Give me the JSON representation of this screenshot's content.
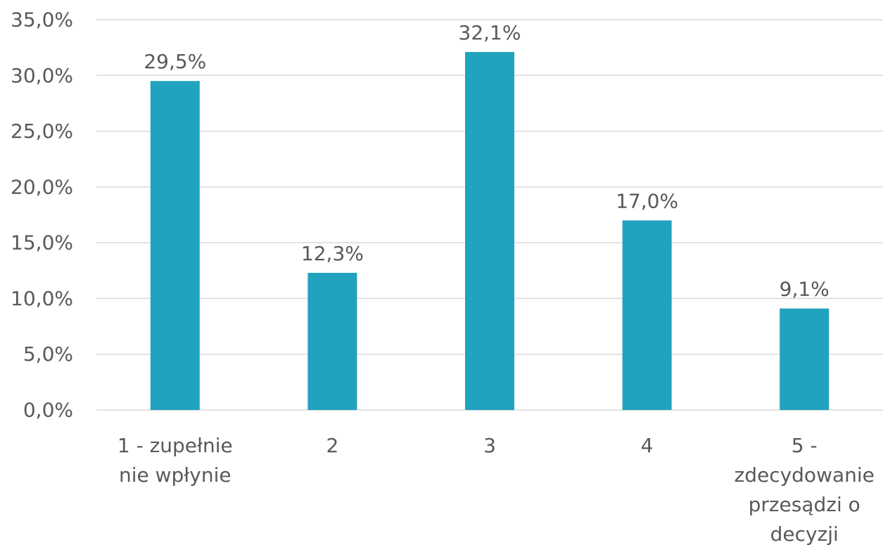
{
  "chart_data": {
    "type": "bar",
    "categories": [
      [
        "1 - zupełnie",
        "nie wpłynie"
      ],
      [
        "2"
      ],
      [
        "3"
      ],
      [
        "4"
      ],
      [
        "5 -",
        "zdecydowanie",
        "przesądzi o",
        "decyzji"
      ]
    ],
    "values": [
      29.5,
      12.3,
      32.1,
      17.0,
      9.1
    ],
    "value_labels": [
      "29,5%",
      "12,3%",
      "32,1%",
      "17,0%",
      "9,1%"
    ],
    "y_ticks": [
      0,
      5,
      10,
      15,
      20,
      25,
      30,
      35
    ],
    "y_tick_labels": [
      "0,0%",
      "5,0%",
      "10,0%",
      "15,0%",
      "20,0%",
      "25,0%",
      "30,0%",
      "35,0%"
    ],
    "ylim": [
      0,
      35
    ],
    "grid": true,
    "legend": "none",
    "title": "",
    "xlabel": "",
    "ylabel": "",
    "colors": {
      "bar": "#21a2bf",
      "grid": "#d9d9d9",
      "text": "#595959"
    }
  }
}
